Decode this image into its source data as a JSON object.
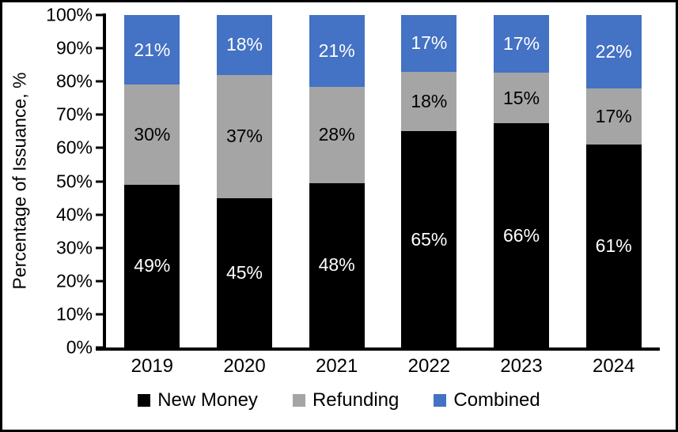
{
  "figure": {
    "background_color": "#ffffff",
    "border_color": "#000000"
  },
  "chart_data": {
    "type": "bar",
    "stacked": true,
    "title": "",
    "xlabel": "",
    "ylabel": "Percentage of Issuance, %",
    "ylim": [
      0,
      100
    ],
    "grid": false,
    "legend_position": "bottom",
    "y_ticks": [
      "0%",
      "10%",
      "20%",
      "30%",
      "40%",
      "50%",
      "60%",
      "70%",
      "80%",
      "90%",
      "100%"
    ],
    "categories": [
      "2019",
      "2020",
      "2021",
      "2022",
      "2023",
      "2024"
    ],
    "series": [
      {
        "name": "New Money",
        "color": "#000000",
        "label_color": "#ffffff",
        "values": [
          49,
          45,
          48,
          65,
          66,
          61
        ],
        "labels": [
          "49%",
          "45%",
          "48%",
          "65%",
          "66%",
          "61%"
        ]
      },
      {
        "name": "Refunding",
        "color": "#a5a5a5",
        "label_color": "#000000",
        "values": [
          30,
          37,
          28,
          18,
          15,
          17
        ],
        "labels": [
          "30%",
          "37%",
          "28%",
          "18%",
          "15%",
          "17%"
        ]
      },
      {
        "name": "Combined",
        "color": "#4472c4",
        "label_color": "#ffffff",
        "values": [
          21,
          18,
          21,
          17,
          17,
          22
        ],
        "labels": [
          "21%",
          "18%",
          "21%",
          "17%",
          "17%",
          "22%"
        ]
      }
    ]
  }
}
